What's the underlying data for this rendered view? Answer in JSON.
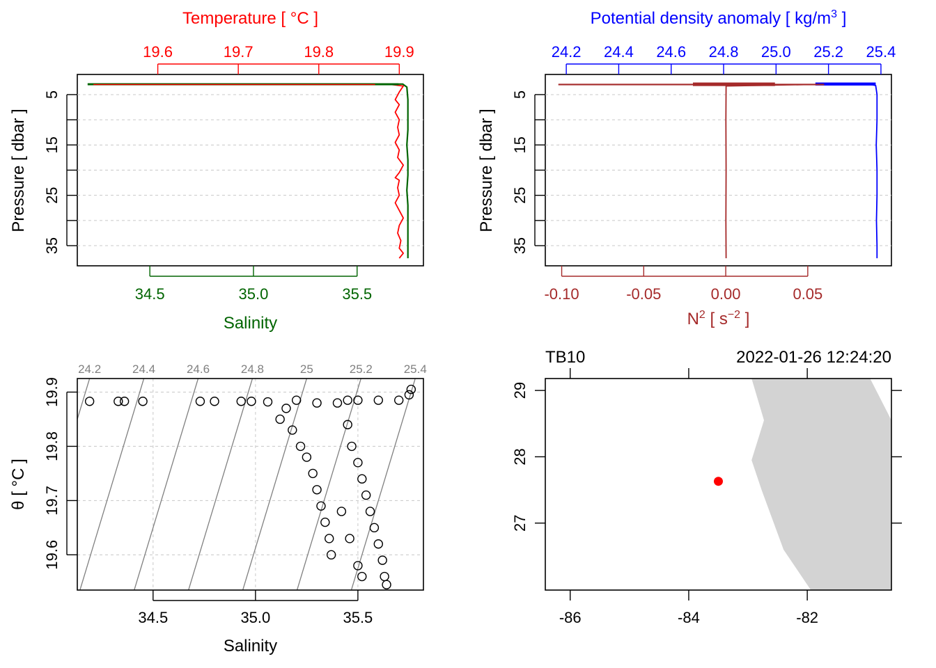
{
  "colors": {
    "temperature": "#ff0000",
    "salinity": "#006400",
    "density": "#0000ff",
    "n2": "#a52a2a",
    "isopycnal": "#808080",
    "land": "#d3d3d3",
    "station": "#ff0000",
    "grid": "#c8c8c8"
  },
  "chart_data": [
    {
      "type": "line",
      "panel": "temperature-salinity-profile",
      "title": "",
      "top_axis": {
        "label": "Temperature [ °C ]",
        "ticks": [
          "19.6",
          "19.7",
          "19.8",
          "19.9"
        ],
        "range": [
          19.5,
          19.93
        ]
      },
      "bottom_axis": {
        "label": "Salinity",
        "ticks": [
          "34.5",
          "35.0",
          "35.5"
        ],
        "range": [
          34.15,
          35.82
        ]
      },
      "y_axis": {
        "label": "Pressure [ dbar ]",
        "ticks": [
          "5",
          "15",
          "25",
          "35"
        ],
        "range": [
          39,
          1
        ],
        "reversed": true,
        "grid_every": 5
      },
      "series": [
        {
          "name": "Temperature",
          "x": [
            19.52,
            19.85,
            19.89,
            19.905,
            19.9,
            19.895,
            19.9,
            19.895,
            19.9,
            19.898,
            19.9,
            19.895,
            19.9,
            19.898,
            19.905,
            19.9,
            19.895,
            19.9,
            19.898,
            19.9,
            19.895,
            19.9,
            19.905,
            19.9,
            19.898,
            19.902,
            19.9,
            19.905,
            19.9
          ],
          "y": [
            3,
            3,
            3,
            3.3,
            4.5,
            6,
            7,
            8.5,
            10,
            11.5,
            13,
            14.5,
            16,
            17.5,
            19,
            20.5,
            21.5,
            22,
            23.5,
            25,
            26.5,
            28,
            29.5,
            31,
            32.5,
            34,
            35.5,
            36.5,
            37.5
          ]
        },
        {
          "name": "Salinity",
          "x": [
            34.2,
            35.6,
            35.72,
            35.74,
            35.745,
            35.745,
            35.745,
            35.74,
            35.745,
            35.745,
            35.74,
            35.745,
            35.745,
            35.745,
            35.745
          ],
          "y": [
            2.9,
            2.9,
            2.9,
            3.5,
            6,
            9,
            12,
            15,
            18,
            21,
            24,
            27,
            31,
            34,
            37.5
          ]
        }
      ]
    },
    {
      "type": "line",
      "panel": "density-n2-profile",
      "title": "",
      "top_axis": {
        "label": "Potential density anomaly [ kg/m",
        "label_sup": "3",
        "label_end": " ]",
        "ticks": [
          "24.2",
          "24.4",
          "24.6",
          "24.8",
          "25.0",
          "25.2",
          "25.4"
        ],
        "range": [
          24.12,
          25.44
        ]
      },
      "bottom_axis": {
        "label": "N",
        "label_sup": "2",
        "label_mid": " [ s",
        "label_sup2": "−2",
        "label_end": " ]",
        "ticks": [
          "-0.10",
          "-0.05",
          "0.00",
          "0.05"
        ],
        "range": [
          -0.11,
          0.101
        ]
      },
      "y_axis": {
        "label": "Pressure [ dbar ]",
        "ticks": [
          "5",
          "15",
          "25",
          "35"
        ],
        "range": [
          39,
          1
        ],
        "reversed": true,
        "grid_every": 5
      },
      "series": [
        {
          "name": "Potential density anomaly",
          "x": [
            25.2,
            25.35,
            25.38,
            25.385,
            25.385,
            25.382,
            25.385,
            25.385,
            25.383,
            25.385,
            25.385
          ],
          "y": [
            2.8,
            2.9,
            3.2,
            5,
            10,
            15,
            20,
            25,
            30,
            35,
            37.5
          ]
        },
        {
          "name": "N2",
          "x": [
            -0.102,
            0.05,
            0.0002,
            0.0001,
            0.0002,
            0.0001,
            0.0002
          ],
          "y": [
            3,
            3,
            3.3,
            10,
            20,
            30,
            37.5
          ]
        }
      ]
    },
    {
      "type": "scatter",
      "panel": "ts-diagram",
      "title": "",
      "xlabel": "Salinity",
      "ylabel": "θ [ °C ]",
      "xlim": [
        34.13,
        35.82
      ],
      "ylim": [
        19.535,
        19.925
      ],
      "x_ticks": [
        "34.5",
        "35.0",
        "35.5"
      ],
      "y_ticks": [
        "19.6",
        "19.7",
        "19.8",
        "19.9"
      ],
      "isopycnals": [
        "24.2",
        "24.4",
        "24.6",
        "24.8",
        "25",
        "25.2",
        "25.4"
      ],
      "points": [
        [
          34.19,
          19.883
        ],
        [
          34.33,
          19.883
        ],
        [
          34.36,
          19.883
        ],
        [
          34.45,
          19.883
        ],
        [
          34.73,
          19.883
        ],
        [
          34.8,
          19.883
        ],
        [
          34.93,
          19.883
        ],
        [
          34.98,
          19.883
        ],
        [
          35.06,
          19.882
        ],
        [
          35.76,
          19.905
        ],
        [
          35.75,
          19.895
        ],
        [
          35.7,
          19.885
        ],
        [
          35.6,
          19.885
        ],
        [
          35.5,
          19.885
        ],
        [
          35.45,
          19.885
        ],
        [
          35.4,
          19.88
        ],
        [
          35.3,
          19.88
        ],
        [
          35.2,
          19.885
        ],
        [
          35.15,
          19.87
        ],
        [
          35.12,
          19.85
        ],
        [
          35.18,
          19.83
        ],
        [
          35.22,
          19.8
        ],
        [
          35.25,
          19.78
        ],
        [
          35.28,
          19.75
        ],
        [
          35.3,
          19.72
        ],
        [
          35.32,
          19.69
        ],
        [
          35.34,
          19.66
        ],
        [
          35.36,
          19.63
        ],
        [
          35.37,
          19.6
        ],
        [
          35.45,
          19.84
        ],
        [
          35.47,
          19.8
        ],
        [
          35.5,
          19.77
        ],
        [
          35.52,
          19.74
        ],
        [
          35.54,
          19.71
        ],
        [
          35.56,
          19.68
        ],
        [
          35.58,
          19.65
        ],
        [
          35.6,
          19.62
        ],
        [
          35.62,
          19.59
        ],
        [
          35.63,
          19.56
        ],
        [
          35.64,
          19.545
        ],
        [
          35.5,
          19.58
        ],
        [
          35.52,
          19.56
        ],
        [
          35.46,
          19.63
        ],
        [
          35.42,
          19.68
        ]
      ]
    },
    {
      "type": "map",
      "panel": "station-map",
      "station_label": "TB10",
      "datetime": "2022-01-26 12:24:20",
      "xlim": [
        -86.42,
        -80.58
      ],
      "ylim": [
        25.99,
        29.18
      ],
      "x_ticks": [
        "-86",
        "-84",
        "-82"
      ],
      "y_ticks": [
        "27",
        "28",
        "29"
      ],
      "station": {
        "lon": -83.5,
        "lat": 27.63
      },
      "coastline": [
        [
          -82.94,
          29.18
        ],
        [
          -80.94,
          29.18
        ],
        [
          -80.58,
          28.55
        ],
        [
          -80.58,
          25.99
        ],
        [
          -81.94,
          25.99
        ],
        [
          -82.4,
          26.6
        ],
        [
          -82.77,
          27.5
        ],
        [
          -82.94,
          27.95
        ],
        [
          -82.73,
          28.55
        ],
        [
          -82.94,
          29.18
        ]
      ]
    }
  ]
}
